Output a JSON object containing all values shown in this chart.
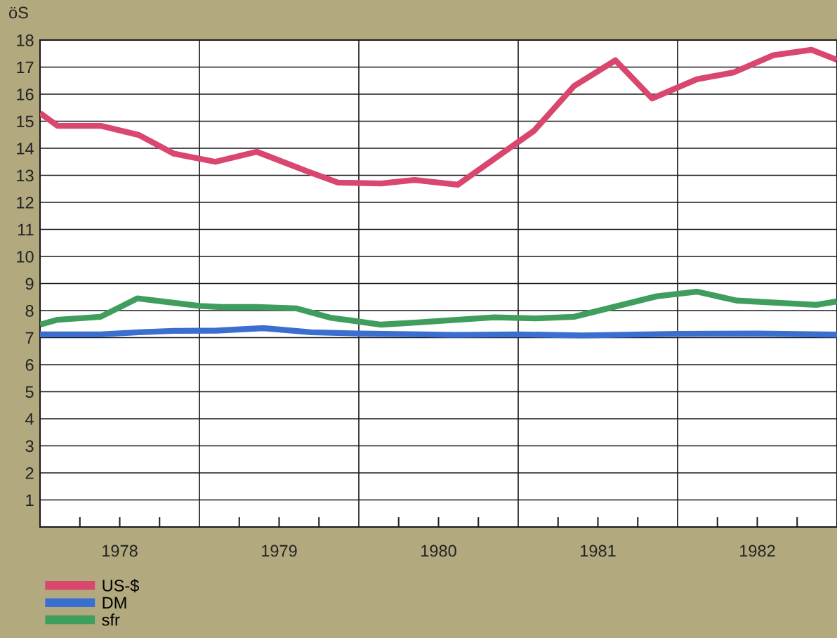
{
  "chart_data": {
    "type": "line",
    "ylabel": "öS",
    "xlim": [
      1978,
      1983
    ],
    "ylim": [
      0,
      18
    ],
    "xticks": [
      {
        "value": 1978.25,
        "label": null
      },
      {
        "value": 1978.5,
        "label": "1978"
      },
      {
        "value": 1978.75,
        "label": null
      },
      {
        "value": 1979.25,
        "label": null
      },
      {
        "value": 1979.5,
        "label": "1979"
      },
      {
        "value": 1979.75,
        "label": null
      },
      {
        "value": 1980.25,
        "label": null
      },
      {
        "value": 1980.5,
        "label": "1980"
      },
      {
        "value": 1980.75,
        "label": null
      },
      {
        "value": 1981.25,
        "label": null
      },
      {
        "value": 1981.5,
        "label": "1981"
      },
      {
        "value": 1981.75,
        "label": null
      },
      {
        "value": 1982.25,
        "label": null
      },
      {
        "value": 1982.5,
        "label": "1982"
      },
      {
        "value": 1982.75,
        "label": null
      }
    ],
    "yticks": [
      1,
      2,
      3,
      4,
      5,
      6,
      7,
      8,
      9,
      10,
      11,
      12,
      13,
      14,
      15,
      16,
      17,
      18
    ],
    "grid": "y",
    "legend": "bottom left",
    "line_style": "solid",
    "marker": "none",
    "ref_lines": [
      {
        "axis": "x",
        "value": 1979,
        "color": "#1a1a1a"
      },
      {
        "axis": "x",
        "value": 1980,
        "color": "#1a1a1a"
      },
      {
        "axis": "x",
        "value": 1981,
        "color": "#1a1a1a"
      },
      {
        "axis": "x",
        "value": 1982,
        "color": "#1a1a1a"
      }
    ],
    "series": [
      {
        "name": "US-$",
        "color": "#d9476f",
        "x": [
          1978.0,
          1978.11,
          1978.38,
          1978.62,
          1978.84,
          1979.1,
          1979.36,
          1979.68,
          1979.87,
          1980.14,
          1980.35,
          1980.62,
          1981.1,
          1981.35,
          1981.61,
          1981.84,
          1982.12,
          1982.35,
          1982.6,
          1982.84,
          1983.0
        ],
        "values": [
          15.3,
          14.83,
          14.83,
          14.49,
          13.8,
          13.5,
          13.87,
          13.14,
          12.73,
          12.7,
          12.83,
          12.65,
          14.65,
          16.3,
          17.25,
          15.84,
          16.55,
          16.8,
          17.44,
          17.64,
          17.27
        ]
      },
      {
        "name": "DM",
        "color": "#3a6fd0",
        "x": [
          1978.0,
          1978.38,
          1978.62,
          1978.84,
          1979.11,
          1979.4,
          1979.7,
          1980.0,
          1980.4,
          1980.6,
          1981.0,
          1981.4,
          1982.0,
          1982.5,
          1983.0
        ],
        "values": [
          7.12,
          7.12,
          7.2,
          7.25,
          7.26,
          7.35,
          7.2,
          7.15,
          7.12,
          7.1,
          7.12,
          7.08,
          7.14,
          7.15,
          7.11
        ]
      },
      {
        "name": "sfr",
        "color": "#3f9d5e",
        "x": [
          1978.0,
          1978.11,
          1978.38,
          1978.61,
          1979.0,
          1979.14,
          1979.36,
          1979.61,
          1979.82,
          1980.14,
          1980.37,
          1980.85,
          1981.11,
          1981.35,
          1981.87,
          1982.12,
          1982.37,
          1982.87,
          1983.0
        ],
        "values": [
          7.48,
          7.66,
          7.77,
          8.45,
          8.17,
          8.13,
          8.13,
          8.08,
          7.74,
          7.48,
          7.56,
          7.75,
          7.71,
          7.77,
          8.53,
          8.7,
          8.37,
          8.21,
          8.34
        ]
      }
    ]
  }
}
